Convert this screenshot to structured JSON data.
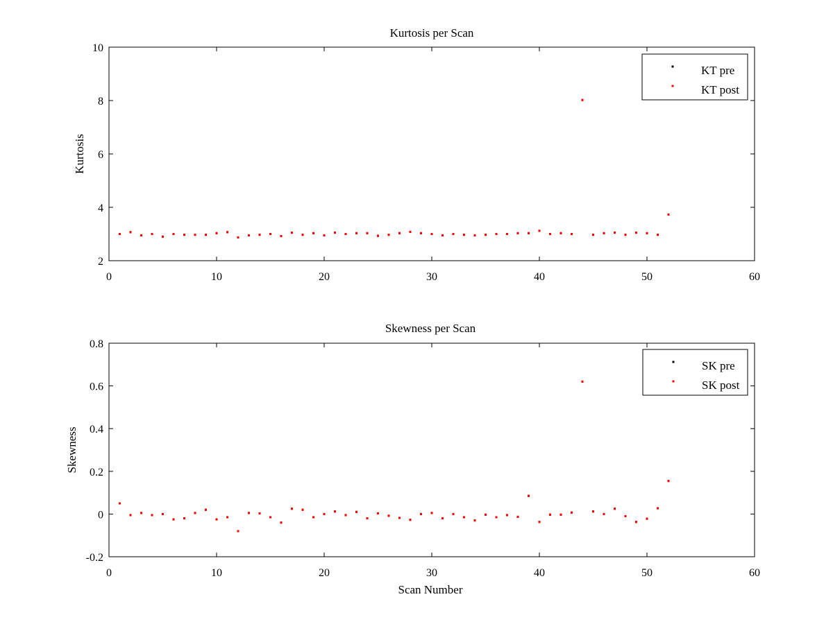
{
  "chart_data": [
    {
      "type": "scatter",
      "title": "Kurtosis per Scan",
      "xlabel": "",
      "ylabel": "Kurtosis",
      "xlim": [
        0,
        60
      ],
      "ylim": [
        2,
        10
      ],
      "xticks": [
        0,
        10,
        20,
        30,
        40,
        50,
        60
      ],
      "yticks": [
        2,
        4,
        6,
        8,
        10
      ],
      "grid": false,
      "legend_position": "top-right",
      "series": [
        {
          "name": "KT pre",
          "color": "#000000",
          "x": [
            1,
            2,
            3,
            4,
            5,
            6,
            7,
            8,
            9,
            10,
            11,
            12,
            13,
            14,
            15,
            16,
            17,
            18,
            19,
            20,
            21,
            22,
            23,
            24,
            25,
            26,
            27,
            28,
            29,
            30,
            31,
            32,
            33,
            34,
            35,
            36,
            37,
            38,
            39,
            40,
            41,
            42,
            43,
            44,
            45,
            46,
            47,
            48,
            49,
            50,
            51,
            52
          ],
          "y": [
            3.0,
            3.07,
            2.95,
            3.0,
            2.9,
            3.0,
            2.97,
            2.97,
            2.97,
            3.03,
            3.07,
            2.87,
            2.95,
            2.97,
            3.0,
            2.92,
            3.05,
            2.97,
            3.03,
            2.95,
            3.05,
            3.0,
            3.03,
            3.03,
            2.93,
            2.97,
            3.03,
            3.08,
            3.03,
            3.0,
            2.95,
            3.0,
            2.97,
            2.95,
            2.97,
            3.0,
            3.0,
            3.03,
            3.03,
            3.12,
            3.0,
            3.03,
            3.0,
            8.02,
            2.97,
            3.03,
            3.05,
            2.97,
            3.05,
            3.03,
            2.97,
            3.73
          ]
        },
        {
          "name": "KT post",
          "color": "#ff0000",
          "x": [
            1,
            2,
            3,
            4,
            5,
            6,
            7,
            8,
            9,
            10,
            11,
            12,
            13,
            14,
            15,
            16,
            17,
            18,
            19,
            20,
            21,
            22,
            23,
            24,
            25,
            26,
            27,
            28,
            29,
            30,
            31,
            32,
            33,
            34,
            35,
            36,
            37,
            38,
            39,
            40,
            41,
            42,
            43,
            44,
            45,
            46,
            47,
            48,
            49,
            50,
            51,
            52
          ],
          "y": [
            3.0,
            3.07,
            2.95,
            3.0,
            2.9,
            3.0,
            2.97,
            2.97,
            2.97,
            3.03,
            3.07,
            2.87,
            2.95,
            2.97,
            3.0,
            2.92,
            3.05,
            2.97,
            3.03,
            2.95,
            3.05,
            3.0,
            3.03,
            3.03,
            2.93,
            2.97,
            3.03,
            3.08,
            3.03,
            3.0,
            2.95,
            3.0,
            2.97,
            2.95,
            2.97,
            3.0,
            3.0,
            3.03,
            3.03,
            3.12,
            3.0,
            3.03,
            3.0,
            8.02,
            2.97,
            3.03,
            3.05,
            2.97,
            3.05,
            3.03,
            2.97,
            3.73
          ]
        }
      ]
    },
    {
      "type": "scatter",
      "title": "Skewness per Scan",
      "xlabel": "Scan Number",
      "ylabel": "Skewness",
      "xlim": [
        0,
        60
      ],
      "ylim": [
        -0.2,
        0.8
      ],
      "xticks": [
        0,
        10,
        20,
        30,
        40,
        50,
        60
      ],
      "yticks": [
        -0.2,
        0,
        0.2,
        0.4,
        0.6,
        0.8
      ],
      "grid": false,
      "legend_position": "top-right",
      "series": [
        {
          "name": "SK pre",
          "color": "#000000",
          "x": [
            1,
            2,
            3,
            4,
            5,
            6,
            7,
            8,
            9,
            10,
            11,
            12,
            13,
            14,
            15,
            16,
            17,
            18,
            19,
            20,
            21,
            22,
            23,
            24,
            25,
            26,
            27,
            28,
            29,
            30,
            31,
            32,
            33,
            34,
            35,
            36,
            37,
            38,
            39,
            40,
            41,
            42,
            43,
            44,
            45,
            46,
            47,
            48,
            49,
            50,
            51,
            52
          ],
          "y": [
            0.05,
            -0.005,
            0.005,
            -0.005,
            0.0,
            -0.025,
            -0.02,
            0.005,
            0.02,
            -0.025,
            -0.015,
            -0.08,
            0.005,
            0.003,
            -0.015,
            -0.04,
            0.025,
            0.02,
            -0.015,
            0.0,
            0.012,
            -0.005,
            0.01,
            -0.02,
            0.003,
            -0.008,
            -0.018,
            -0.027,
            0.0,
            0.005,
            -0.02,
            0.0,
            -0.015,
            -0.03,
            -0.003,
            -0.015,
            -0.005,
            -0.013,
            0.085,
            -0.037,
            -0.003,
            -0.003,
            0.007,
            0.62,
            0.012,
            0.0,
            0.025,
            -0.01,
            -0.037,
            -0.022,
            0.027,
            0.155
          ]
        },
        {
          "name": "SK post",
          "color": "#ff0000",
          "x": [
            1,
            2,
            3,
            4,
            5,
            6,
            7,
            8,
            9,
            10,
            11,
            12,
            13,
            14,
            15,
            16,
            17,
            18,
            19,
            20,
            21,
            22,
            23,
            24,
            25,
            26,
            27,
            28,
            29,
            30,
            31,
            32,
            33,
            34,
            35,
            36,
            37,
            38,
            39,
            40,
            41,
            42,
            43,
            44,
            45,
            46,
            47,
            48,
            49,
            50,
            51,
            52
          ],
          "y": [
            0.05,
            -0.005,
            0.005,
            -0.005,
            0.0,
            -0.025,
            -0.02,
            0.005,
            0.02,
            -0.025,
            -0.015,
            -0.08,
            0.005,
            0.003,
            -0.015,
            -0.04,
            0.025,
            0.02,
            -0.015,
            0.0,
            0.012,
            -0.005,
            0.01,
            -0.02,
            0.003,
            -0.008,
            -0.018,
            -0.027,
            0.0,
            0.005,
            -0.02,
            0.0,
            -0.015,
            -0.03,
            -0.003,
            -0.015,
            -0.005,
            -0.013,
            0.085,
            -0.037,
            -0.003,
            -0.003,
            0.007,
            0.62,
            0.012,
            0.0,
            0.025,
            -0.01,
            -0.037,
            -0.022,
            0.027,
            0.155
          ]
        }
      ]
    }
  ]
}
